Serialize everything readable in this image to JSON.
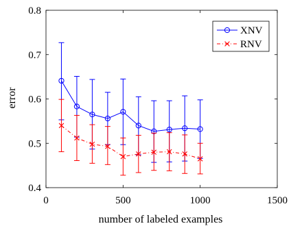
{
  "chart_data": {
    "type": "line",
    "xlabel": "number of labeled examples",
    "ylabel": "error",
    "xlim": [
      0,
      1500
    ],
    "ylim": [
      0.4,
      0.8
    ],
    "xticks": [
      0,
      500,
      1000,
      1500
    ],
    "xtick_labels": [
      "0",
      "500",
      "1000",
      "1500"
    ],
    "yticks": [
      0.4,
      0.5,
      0.6,
      0.7,
      0.8
    ],
    "ytick_labels": [
      "0.4",
      "0.5",
      "0.6",
      "0.7",
      "0.8"
    ],
    "grid": false,
    "legend_position": "top-right",
    "x": [
      100,
      200,
      300,
      400,
      500,
      600,
      700,
      800,
      900,
      1000
    ],
    "series": [
      {
        "name": "XNV",
        "color": "#0000ff",
        "line_style": "solid",
        "marker": "circle",
        "values": [
          0.641,
          0.583,
          0.565,
          0.556,
          0.571,
          0.54,
          0.527,
          0.531,
          0.534,
          0.532
        ],
        "error_low": [
          0.553,
          0.514,
          0.487,
          0.497,
          0.497,
          0.474,
          0.457,
          0.458,
          0.46,
          0.466
        ],
        "error_high": [
          0.727,
          0.651,
          0.644,
          0.615,
          0.645,
          0.605,
          0.596,
          0.596,
          0.607,
          0.598
        ]
      },
      {
        "name": "RNV",
        "color": "#ff0000",
        "line_style": "dash-dot",
        "marker": "x",
        "values": [
          0.54,
          0.512,
          0.498,
          0.493,
          0.47,
          0.476,
          0.48,
          0.481,
          0.476,
          0.465
        ],
        "error_low": [
          0.481,
          0.461,
          0.455,
          0.452,
          0.428,
          0.434,
          0.439,
          0.438,
          0.432,
          0.431
        ],
        "error_high": [
          0.599,
          0.563,
          0.542,
          0.538,
          0.512,
          0.518,
          0.523,
          0.524,
          0.519,
          0.5
        ]
      }
    ]
  }
}
